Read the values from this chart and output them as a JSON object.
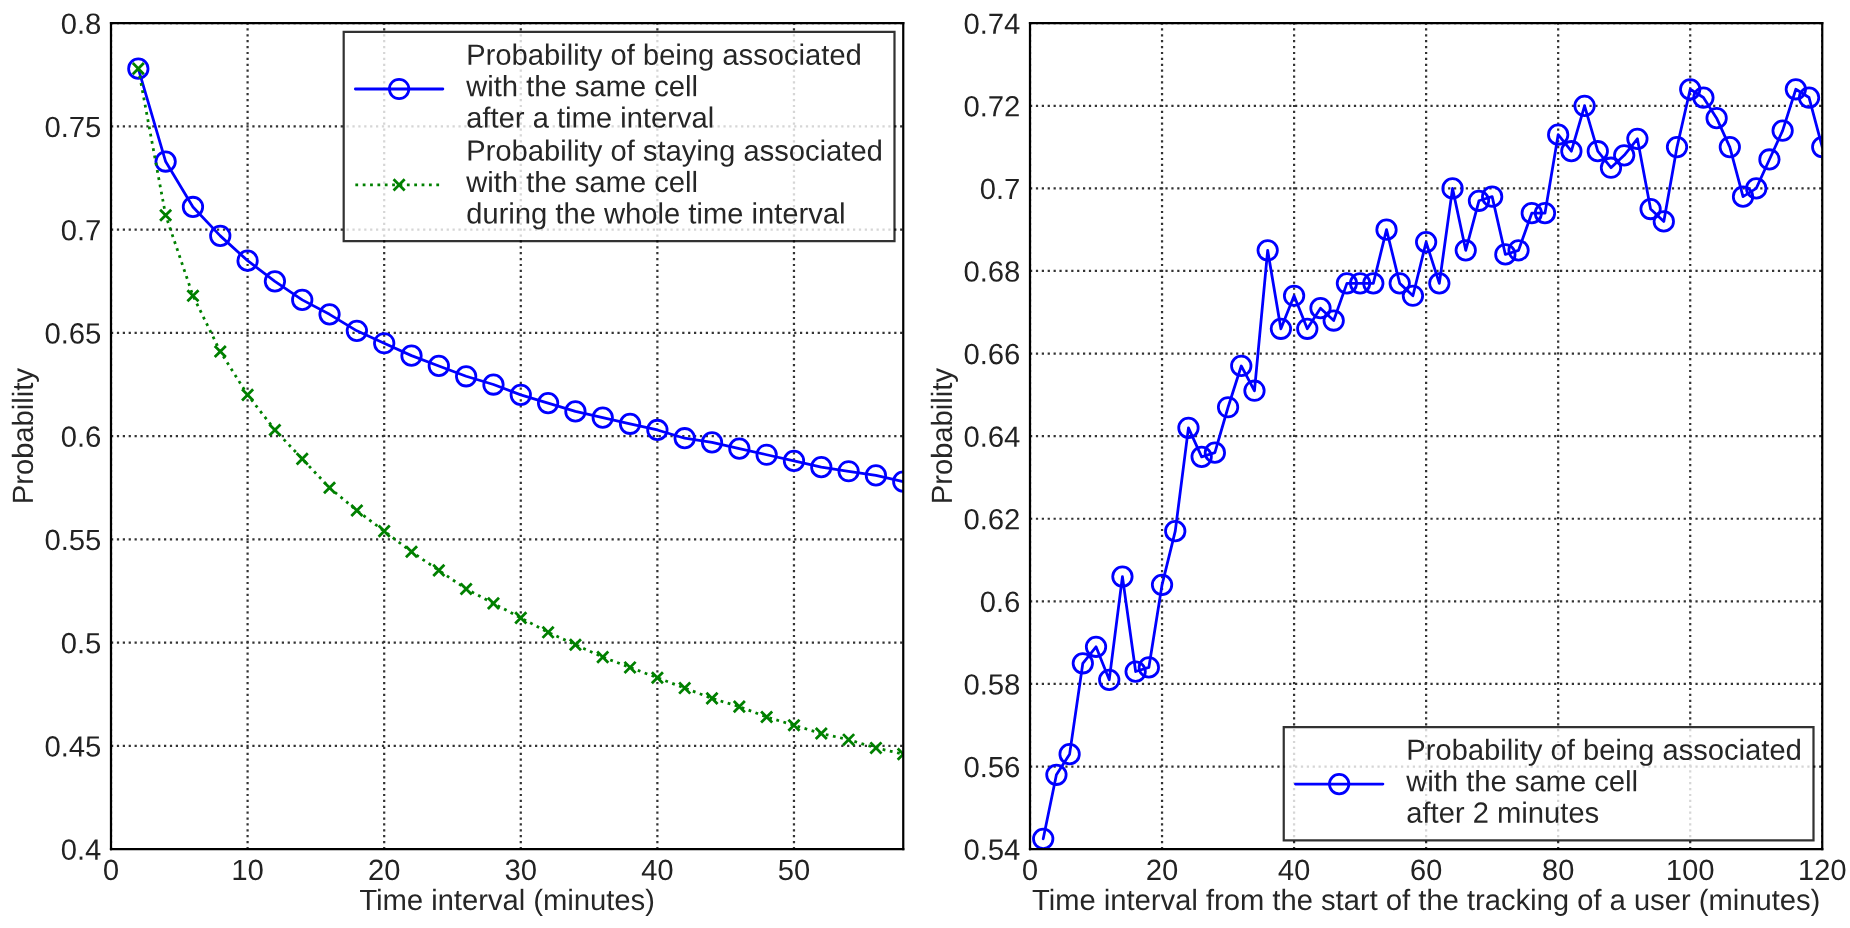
{
  "chart_data": [
    {
      "type": "line",
      "xlabel": "Time interval (minutes)",
      "ylabel": "Probability",
      "xlim": [
        0,
        58
      ],
      "xticks": [
        0,
        10,
        20,
        30,
        40,
        50
      ],
      "ylim": [
        0.4,
        0.8
      ],
      "yticks": [
        0.4,
        0.45,
        0.5,
        0.55,
        0.6,
        0.65,
        0.7,
        0.75,
        0.8
      ],
      "grid": true,
      "legend": "top right",
      "x": [
        2,
        4,
        6,
        8,
        10,
        12,
        14,
        16,
        18,
        20,
        22,
        24,
        26,
        28,
        30,
        32,
        34,
        36,
        38,
        40,
        42,
        44,
        46,
        48,
        50,
        52,
        54,
        56,
        58
      ],
      "series": [
        {
          "name": "Probability of being associated\nwith the same cell\nafter a time interval",
          "color": "#0000ff",
          "marker": "circle",
          "line_style": "solid",
          "values": [
            0.778,
            0.733,
            0.711,
            0.697,
            0.685,
            0.675,
            0.666,
            0.659,
            0.651,
            0.645,
            0.639,
            0.634,
            0.629,
            0.625,
            0.62,
            0.616,
            0.612,
            0.609,
            0.606,
            0.603,
            0.599,
            0.597,
            0.594,
            0.591,
            0.588,
            0.585,
            0.583,
            0.581,
            0.578
          ]
        },
        {
          "name": "Probability of staying associated\nwith the same cell\nduring the whole time interval",
          "color": "#008000",
          "marker": "cross",
          "line_style": "dotted",
          "values": [
            0.778,
            0.707,
            0.668,
            0.641,
            0.62,
            0.603,
            0.589,
            0.575,
            0.564,
            0.554,
            0.544,
            0.535,
            0.526,
            0.519,
            0.512,
            0.505,
            0.499,
            0.493,
            0.488,
            0.483,
            0.478,
            0.473,
            0.469,
            0.464,
            0.46,
            0.456,
            0.453,
            0.449,
            0.446
          ]
        }
      ]
    },
    {
      "type": "line",
      "xlabel": "Time interval from the start of the tracking of a user (minutes)",
      "ylabel": "Probability",
      "xlim": [
        0,
        120
      ],
      "xticks": [
        0,
        20,
        40,
        60,
        80,
        100,
        120
      ],
      "ylim": [
        0.54,
        0.74
      ],
      "yticks": [
        0.54,
        0.56,
        0.58,
        0.6,
        0.62,
        0.64,
        0.66,
        0.68,
        0.7,
        0.72,
        0.74
      ],
      "grid": true,
      "legend": "bottom right",
      "x": [
        2,
        4,
        6,
        8,
        10,
        12,
        14,
        16,
        18,
        20,
        22,
        24,
        26,
        28,
        30,
        32,
        34,
        36,
        38,
        40,
        42,
        44,
        46,
        48,
        50,
        52,
        54,
        56,
        58,
        60,
        62,
        64,
        66,
        68,
        70,
        72,
        74,
        76,
        78,
        80,
        82,
        84,
        86,
        88,
        90,
        92,
        94,
        96,
        98,
        100,
        102,
        104,
        106,
        108,
        110,
        112,
        114,
        116,
        118,
        120
      ],
      "series": [
        {
          "name": "Probability of being associated\nwith the same cell\nafter 2 minutes",
          "color": "#0000ff",
          "marker": "circle",
          "line_style": "solid",
          "values": [
            0.5425,
            0.558,
            0.563,
            0.585,
            0.589,
            0.581,
            0.606,
            0.583,
            0.584,
            0.604,
            0.617,
            0.642,
            0.635,
            0.636,
            0.647,
            0.657,
            0.651,
            0.685,
            0.666,
            0.674,
            0.666,
            0.671,
            0.668,
            0.677,
            0.677,
            0.677,
            0.69,
            0.677,
            0.674,
            0.687,
            0.677,
            0.7,
            0.685,
            0.697,
            0.698,
            0.684,
            0.685,
            0.694,
            0.694,
            0.713,
            0.709,
            0.72,
            0.709,
            0.705,
            0.708,
            0.712,
            0.695,
            0.692,
            0.71,
            0.724,
            0.722,
            0.717,
            0.71,
            0.698,
            0.7,
            0.707,
            0.714,
            0.724,
            0.722,
            0.71
          ]
        }
      ]
    }
  ]
}
